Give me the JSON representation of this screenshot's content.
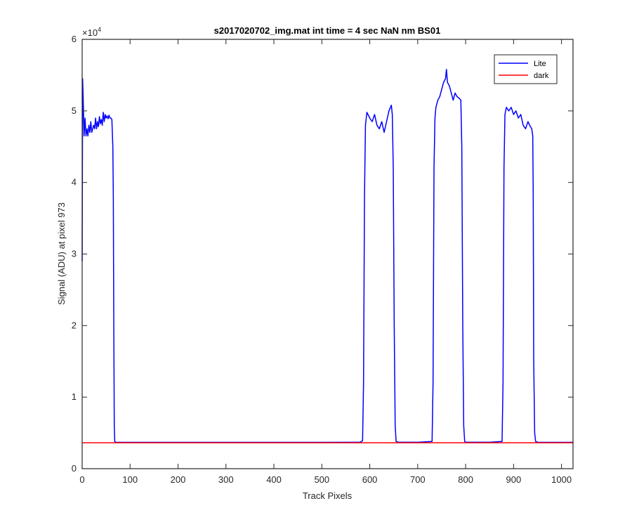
{
  "chart_data": {
    "type": "line",
    "title": "s2017020702_img.mat int time = 4 sec  NaN nm BS01",
    "xlabel": "Track Pixels",
    "ylabel": "Signal (ADU) at pixel 973",
    "y_exponent_label": "×10",
    "y_exponent_power": "4",
    "xlim": [
      0,
      1024
    ],
    "ylim": [
      0,
      60000
    ],
    "x_ticks": [
      0,
      100,
      200,
      300,
      400,
      500,
      600,
      700,
      800,
      900,
      1000
    ],
    "x_tick_labels": [
      "0",
      "100",
      "200",
      "300",
      "400",
      "500",
      "600",
      "700",
      "800",
      "900",
      "1000"
    ],
    "y_ticks": [
      0,
      10000,
      20000,
      30000,
      40000,
      50000,
      60000
    ],
    "y_tick_labels": [
      "0",
      "1",
      "2",
      "3",
      "4",
      "5",
      "6"
    ],
    "grid": false,
    "legend_position": "top-right",
    "series": [
      {
        "name": "Lite",
        "color": "#0000ff",
        "x": [
          0,
          1,
          2,
          4,
          6,
          8,
          10,
          12,
          14,
          16,
          18,
          20,
          22,
          24,
          26,
          28,
          30,
          32,
          34,
          36,
          38,
          40,
          42,
          44,
          46,
          48,
          50,
          52,
          54,
          56,
          58,
          60,
          62,
          64,
          65,
          66,
          67,
          68,
          70,
          75,
          100,
          200,
          300,
          400,
          500,
          580,
          585,
          587,
          589,
          591,
          594,
          600,
          605,
          610,
          615,
          620,
          625,
          630,
          635,
          640,
          645,
          647,
          649,
          651,
          653,
          655,
          660,
          700,
          730,
          732,
          734,
          736,
          738,
          742,
          746,
          750,
          754,
          758,
          760,
          762,
          766,
          770,
          774,
          778,
          782,
          786,
          790,
          792,
          794,
          796,
          798,
          800,
          850,
          876,
          878,
          880,
          882,
          885,
          890,
          895,
          900,
          905,
          910,
          915,
          920,
          925,
          930,
          935,
          938,
          940,
          941,
          942,
          944,
          946,
          950,
          1000,
          1024
        ],
        "y": [
          29000,
          54500,
          52000,
          46500,
          49000,
          46500,
          47500,
          46500,
          48000,
          47000,
          48500,
          47000,
          47500,
          48000,
          47500,
          49000,
          47500,
          48500,
          47800,
          49200,
          48200,
          48800,
          48000,
          49800,
          48500,
          49500,
          49000,
          49300,
          48900,
          49400,
          49000,
          49000,
          48800,
          45000,
          38000,
          20000,
          6000,
          3800,
          3700,
          3680,
          3680,
          3680,
          3680,
          3680,
          3680,
          3700,
          3900,
          12000,
          38000,
          48000,
          49800,
          49000,
          48500,
          49500,
          48000,
          47500,
          48500,
          47000,
          48500,
          50000,
          50800,
          49500,
          42000,
          20000,
          6000,
          3800,
          3700,
          3700,
          3800,
          12000,
          42000,
          49000,
          50500,
          51500,
          52000,
          53000,
          54000,
          54500,
          55800,
          54000,
          53500,
          52500,
          51500,
          52500,
          52000,
          51800,
          51500,
          45000,
          20000,
          6000,
          3800,
          3700,
          3700,
          3800,
          12000,
          42000,
          49500,
          50500,
          50000,
          50500,
          49500,
          50000,
          49000,
          49500,
          48000,
          47500,
          48500,
          47800,
          47500,
          46500,
          38000,
          15000,
          5000,
          3800,
          3700,
          3680,
          3680
        ]
      },
      {
        "name": "dark",
        "color": "#ff0000",
        "x": [
          0,
          1024
        ],
        "y": [
          3620,
          3620
        ]
      }
    ]
  }
}
